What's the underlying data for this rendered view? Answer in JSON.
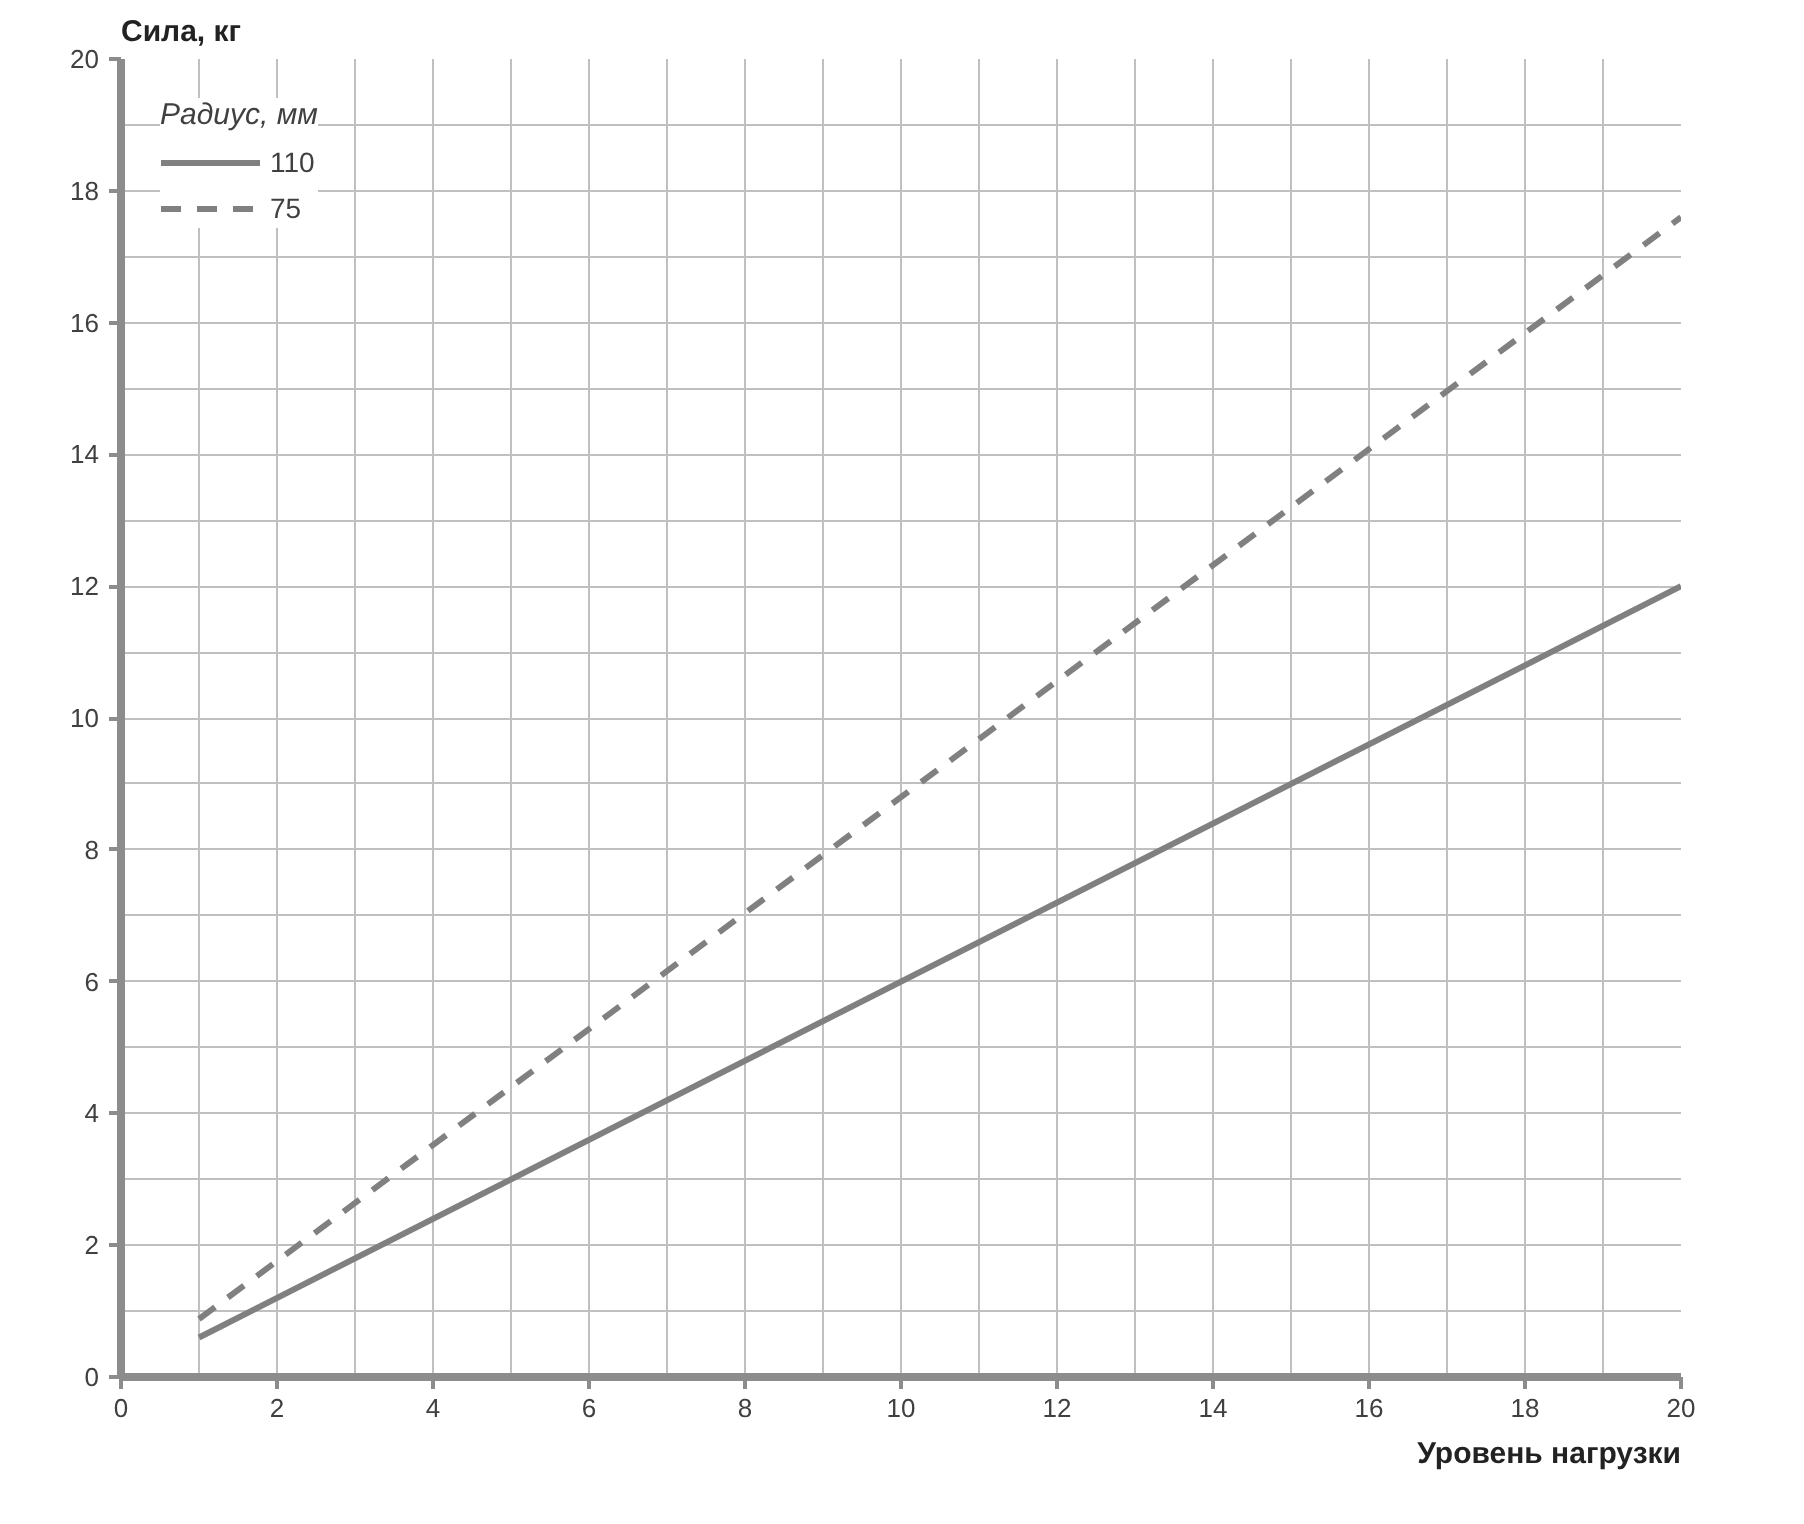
{
  "chart_data": {
    "type": "line",
    "xlabel": "Уровень нагрузки",
    "ylabel": "Сила, кг",
    "legend_title": "Радиус, мм",
    "x": [
      1,
      20
    ],
    "series": [
      {
        "name": "110",
        "color": "#808080",
        "values": [
          0.6,
          12.0
        ],
        "line_style": "solid"
      },
      {
        "name": "75",
        "color": "#808080",
        "values": [
          0.88,
          17.6
        ],
        "line_style": "dashed"
      }
    ],
    "xlim": [
      0,
      20
    ],
    "ylim": [
      0,
      20
    ],
    "xticks": [
      0,
      2,
      4,
      6,
      8,
      10,
      12,
      14,
      16,
      18,
      20
    ],
    "yticks": [
      0,
      2,
      4,
      6,
      8,
      10,
      12,
      14,
      16,
      18,
      20
    ],
    "grid": true,
    "legend": "top left",
    "marker": "none"
  }
}
